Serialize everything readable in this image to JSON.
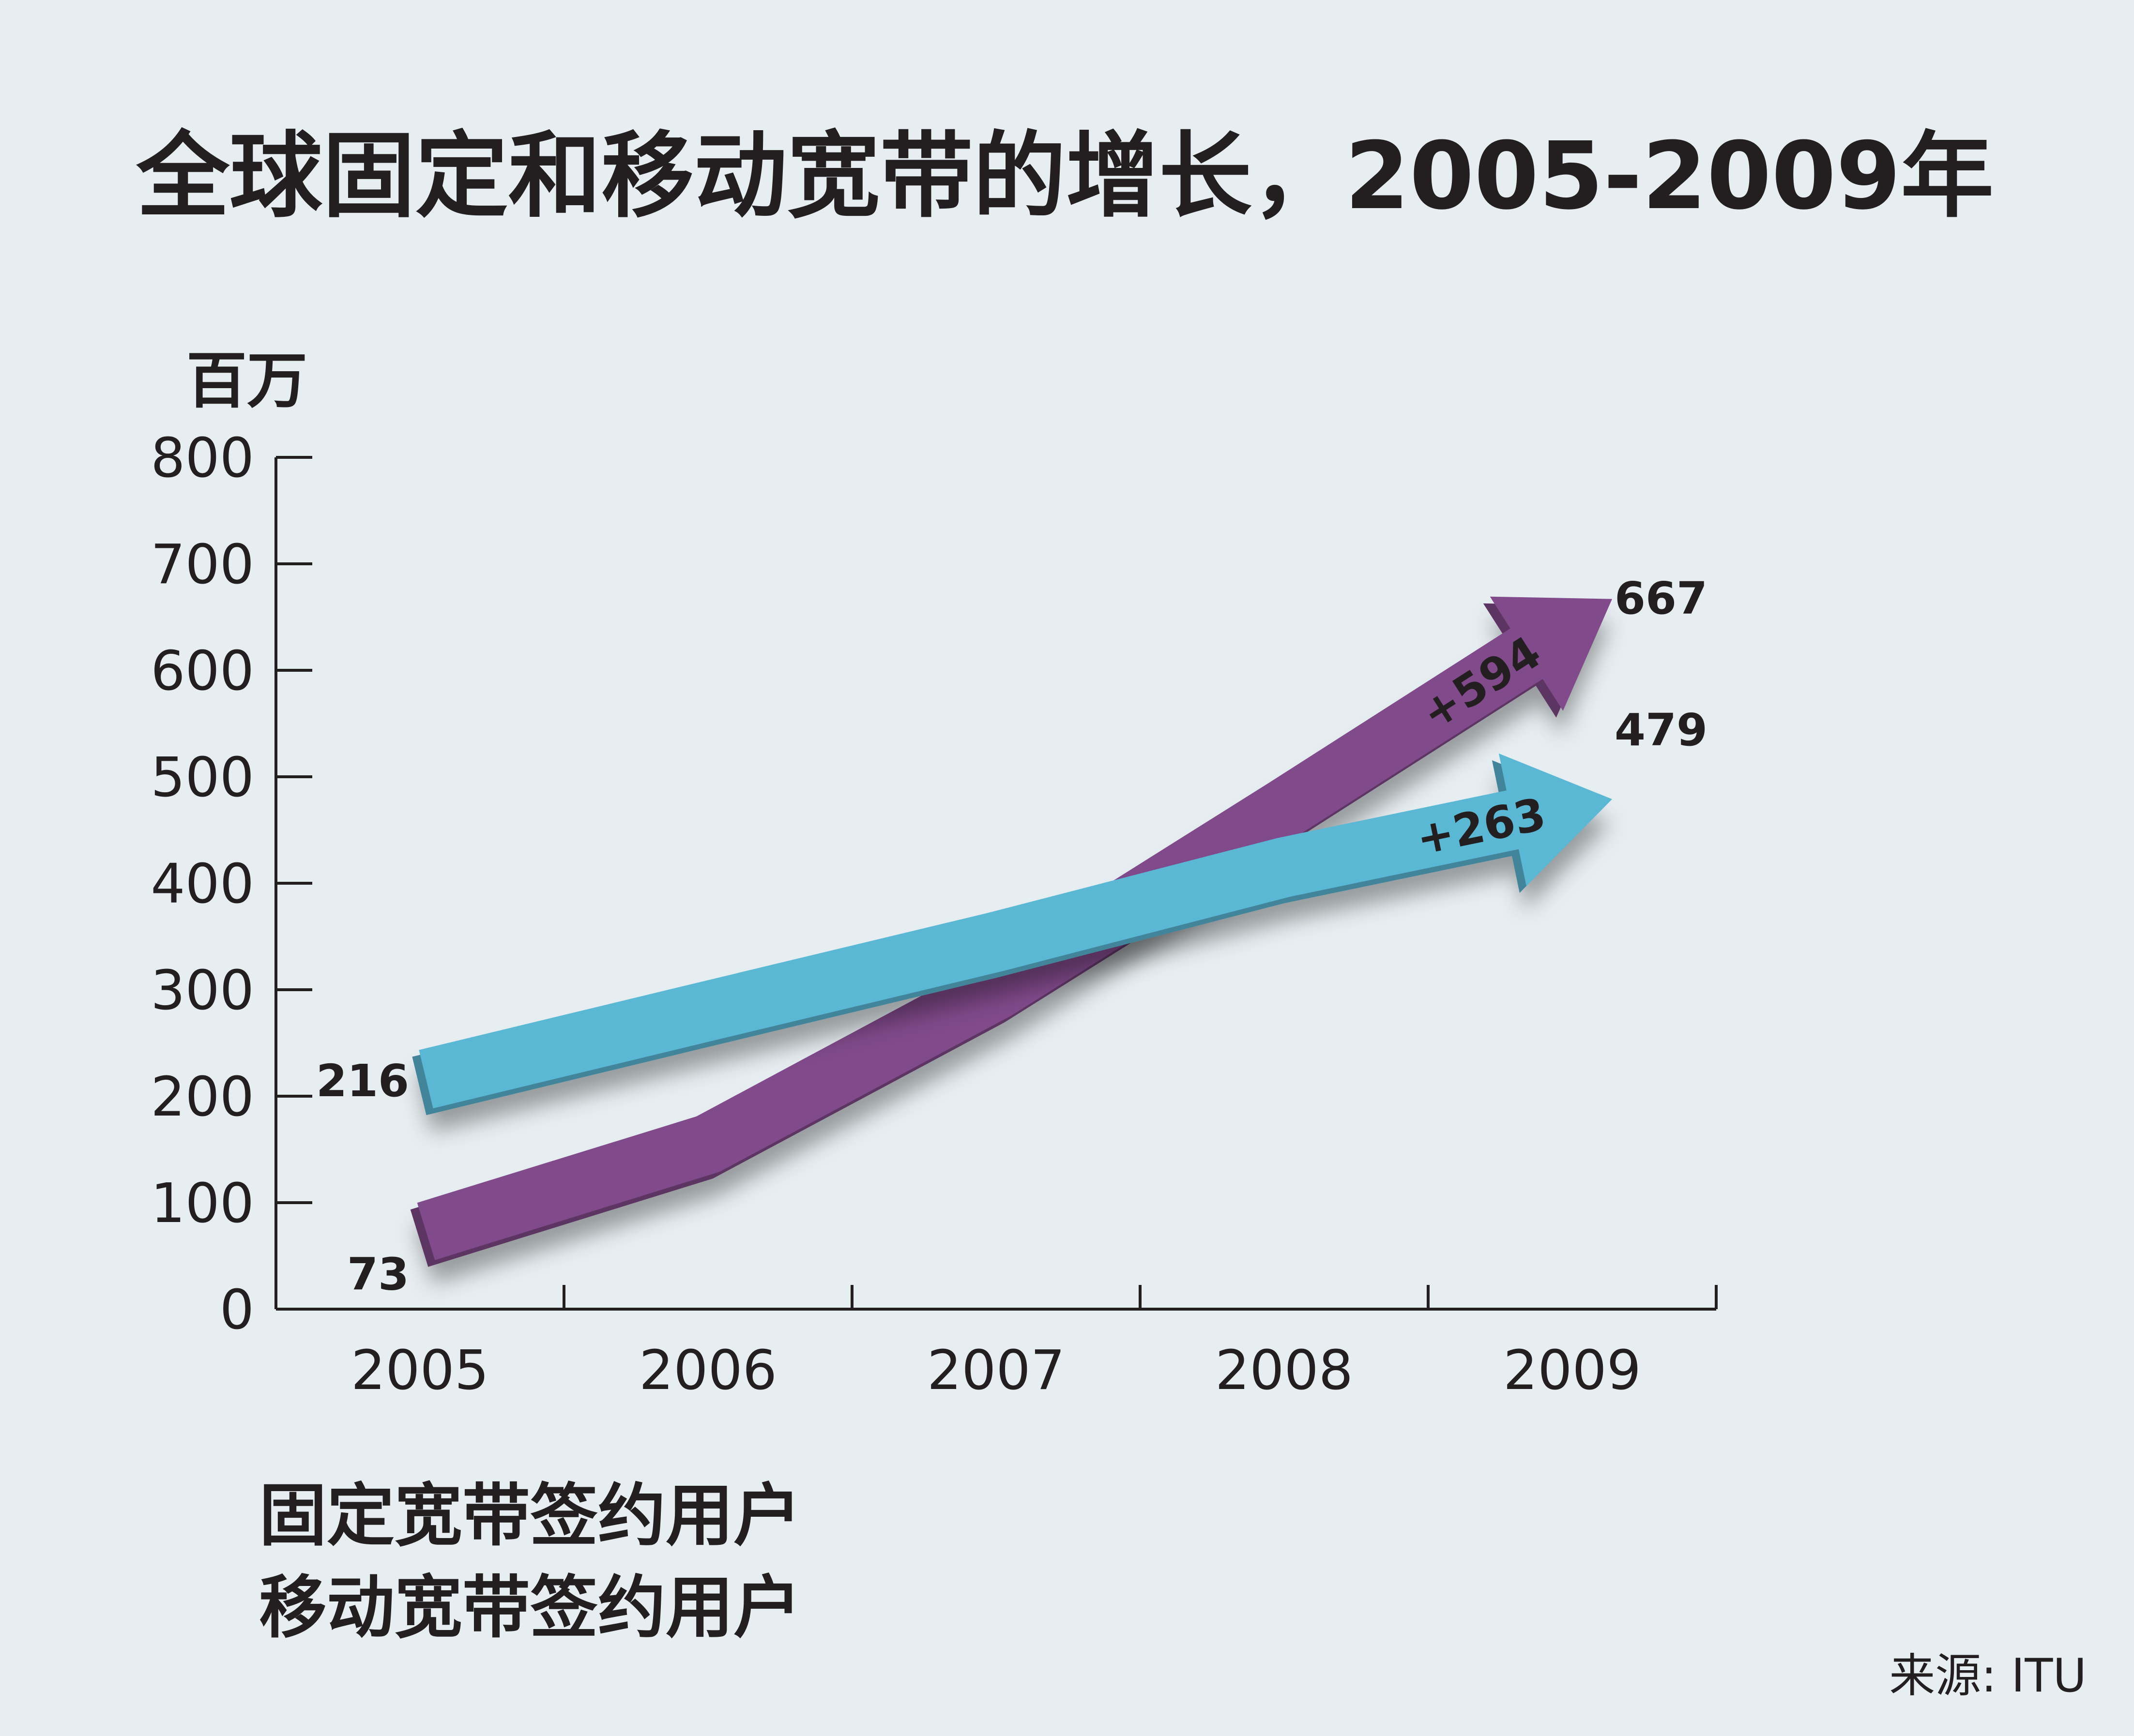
{
  "chart_data": {
    "type": "line",
    "title": "全球固定和移动宽带的增长，2005-2009年",
    "ylabel": "百万",
    "xlabel": "",
    "x": [
      "2005",
      "2006",
      "2007",
      "2008",
      "2009"
    ],
    "ylim": [
      0,
      800
    ],
    "yticks": [
      "0",
      "100",
      "200",
      "300",
      "400",
      "500",
      "600",
      "700",
      "800"
    ],
    "series": [
      {
        "name": "固定宽带签约用户",
        "color": "#5bb8d4",
        "values": [
          216,
          280,
          345,
          415,
          479
        ],
        "start_label": "216",
        "end_label": "479",
        "change_label": "+263"
      },
      {
        "name": "移动宽带签约用户",
        "color": "#814a8b",
        "values": [
          73,
          155,
          300,
          470,
          667
        ],
        "start_label": "73",
        "end_label": "667",
        "change_label": "+594"
      }
    ],
    "source": "来源: ITU",
    "grid": false,
    "legend_position": "bottom-left"
  }
}
